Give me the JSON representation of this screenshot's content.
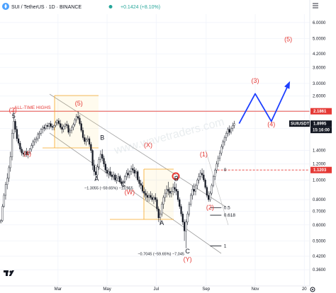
{
  "header": {
    "pair": "SUI / TetherUS · 1D · BINANCE",
    "change": "+0.1424 (+8.10%)",
    "status_color": "#26a69a"
  },
  "watermark": "www.wavetraders.com",
  "chart_data": {
    "type": "candlestick",
    "title": "SUI / TetherUS · 1D · BINANCE",
    "y_scale": "log",
    "ylim": [
      0.33,
      6.6
    ],
    "y_ticks": [
      "6.0000",
      "5.0000",
      "4.2000",
      "3.6000",
      "3.0000",
      "2.6000",
      "2.2000",
      "1.8000",
      "1.4000",
      "1.2000",
      "1.0000",
      "0.8000",
      "0.7000",
      "0.6000",
      "0.5000",
      "0.4200",
      "0.3600"
    ],
    "x_ticks": [
      "Mar",
      "May",
      "Jul",
      "Sep",
      "Nov",
      "20"
    ],
    "price_labels": [
      {
        "label": "2.1861",
        "value": 2.1861,
        "color": "#e53935"
      },
      {
        "label": "SUIUSDT",
        "value": 1.8995,
        "color": "#131722"
      },
      {
        "label": "1.8995",
        "value": 1.8995,
        "color": "#131722"
      },
      {
        "label": "15:16:00",
        "value": 1.74,
        "color": "#131722"
      },
      {
        "label": "1.1203",
        "value": 1.1203,
        "color": "#e53935"
      }
    ],
    "horizontal_lines": [
      {
        "label": "ALL-TIME HIGHS",
        "value": 2.1861,
        "color": "#e53935",
        "style": "solid"
      },
      {
        "label": "",
        "value": 1.1203,
        "color": "#e53935",
        "style": "dashed"
      }
    ],
    "fibonacci": [
      {
        "label": "0",
        "value": 1.1203
      },
      {
        "label": "0.5",
        "value": 0.73
      },
      {
        "label": "0.618",
        "value": 0.67
      },
      {
        "label": "1",
        "value": 0.472
      }
    ],
    "waves": [
      {
        "label": "(3)",
        "date": "2024-01-05",
        "value": 2.16,
        "color": "#e53935"
      },
      {
        "label": "5",
        "date": "2024-01-06",
        "value": 2.02,
        "color": "#131722"
      },
      {
        "label": "(4)",
        "date": "2024-01-23",
        "value": 1.32,
        "color": "#e53935"
      },
      {
        "label": "(5)",
        "date": "2024-03-27",
        "value": 2.34,
        "color": "#e53935"
      },
      {
        "label": "B",
        "date": "2024-04-25",
        "value": 1.58,
        "color": "#131722"
      },
      {
        "label": "A",
        "date": "2024-04-18",
        "value": 0.99,
        "color": "#131722"
      },
      {
        "label": "C",
        "date": "2024-05-21",
        "value": 0.93,
        "color": "#131722"
      },
      {
        "label": "(W)",
        "date": "2024-05-29",
        "value": 0.85,
        "color": "#e53935"
      },
      {
        "label": "(X)",
        "date": "2024-06-21",
        "value": 1.45,
        "color": "#e53935"
      },
      {
        "label": "A",
        "date": "2024-07-08",
        "value": 0.6,
        "color": "#131722"
      },
      {
        "label": "B",
        "date": "2024-07-26",
        "value": 0.99,
        "color": "#131722"
      },
      {
        "label": "(1)",
        "date": "2024-08-29",
        "value": 1.31,
        "color": "#e53935"
      },
      {
        "label": "C",
        "date": "2024-08-09",
        "value": 0.434,
        "color": "#131722"
      },
      {
        "label": "(Y)",
        "date": "2024-08-09",
        "value": 0.395,
        "color": "#e53935"
      },
      {
        "label": "(2)",
        "date": "2024-09-06",
        "value": 0.715,
        "color": "#e53935"
      },
      {
        "label": "(3)",
        "date": "2024-11-01",
        "value": 3.02,
        "color": "#e53935"
      },
      {
        "label": "(4)",
        "date": "2024-11-21",
        "value": 1.84,
        "color": "#e53935"
      },
      {
        "label": "(5)",
        "date": "2024-12-12",
        "value": 4.85,
        "color": "#e53935"
      }
    ],
    "annotations": [
      {
        "text": "−1.3055 (−59.65%) −13,055",
        "date": "2024-05-03",
        "value": 0.9
      },
      {
        "text": "−0.7045 (−59.65%) −7,045",
        "date": "2024-07-07",
        "value": 0.425
      }
    ],
    "projection": [
      {
        "date": "2024-10-12",
        "value": 1.9
      },
      {
        "date": "2024-11-01",
        "value": 2.67
      },
      {
        "date": "2024-11-21",
        "value": 1.95
      },
      {
        "date": "2024-12-12",
        "value": 2.95
      }
    ],
    "candles": [
      [
        "2023-12-21",
        0.62,
        0.64,
        0.61,
        0.63
      ],
      [
        "2023-12-23",
        0.63,
        0.76,
        0.62,
        0.74
      ],
      [
        "2023-12-25",
        0.74,
        0.86,
        0.73,
        0.84
      ],
      [
        "2023-12-27",
        0.84,
        0.98,
        0.8,
        0.95
      ],
      [
        "2023-12-29",
        0.95,
        1.08,
        0.9,
        1.02
      ],
      [
        "2023-12-31",
        1.02,
        1.18,
        0.98,
        1.15
      ],
      [
        "2024-01-02",
        1.15,
        1.38,
        1.1,
        1.3
      ],
      [
        "2024-01-04",
        1.3,
        1.78,
        1.25,
        1.7
      ],
      [
        "2024-01-06",
        1.7,
        2.18,
        1.6,
        1.95
      ],
      [
        "2024-01-08",
        1.95,
        2.0,
        1.72,
        1.78
      ],
      [
        "2024-01-10",
        1.78,
        1.85,
        1.55,
        1.6
      ],
      [
        "2024-01-12",
        1.6,
        1.68,
        1.48,
        1.52
      ],
      [
        "2024-01-14",
        1.52,
        1.56,
        1.38,
        1.42
      ],
      [
        "2024-01-16",
        1.42,
        1.46,
        1.32,
        1.36
      ],
      [
        "2024-01-18",
        1.36,
        1.4,
        1.3,
        1.34
      ],
      [
        "2024-01-20",
        1.34,
        1.4,
        1.3,
        1.38
      ],
      [
        "2024-01-22",
        1.38,
        1.44,
        1.3,
        1.33
      ],
      [
        "2024-01-24",
        1.33,
        1.4,
        1.28,
        1.37
      ],
      [
        "2024-01-26",
        1.37,
        1.44,
        1.34,
        1.42
      ],
      [
        "2024-01-28",
        1.42,
        1.52,
        1.38,
        1.48
      ],
      [
        "2024-01-30",
        1.48,
        1.58,
        1.44,
        1.54
      ],
      [
        "2024-02-01",
        1.54,
        1.62,
        1.48,
        1.58
      ],
      [
        "2024-02-03",
        1.58,
        1.64,
        1.52,
        1.6
      ],
      [
        "2024-02-05",
        1.6,
        1.72,
        1.55,
        1.68
      ],
      [
        "2024-02-07",
        1.68,
        1.75,
        1.6,
        1.7
      ],
      [
        "2024-02-09",
        1.7,
        1.8,
        1.65,
        1.78
      ],
      [
        "2024-02-11",
        1.78,
        1.86,
        1.7,
        1.82
      ],
      [
        "2024-02-13",
        1.82,
        1.88,
        1.74,
        1.8
      ],
      [
        "2024-02-15",
        1.8,
        1.9,
        1.76,
        1.86
      ],
      [
        "2024-02-17",
        1.86,
        1.92,
        1.78,
        1.84
      ],
      [
        "2024-02-19",
        1.84,
        1.92,
        1.78,
        1.9
      ],
      [
        "2024-02-21",
        1.9,
        1.96,
        1.8,
        1.84
      ],
      [
        "2024-02-23",
        1.84,
        1.9,
        1.76,
        1.82
      ],
      [
        "2024-02-25",
        1.82,
        1.88,
        1.76,
        1.86
      ],
      [
        "2024-02-27",
        1.86,
        1.96,
        1.82,
        1.92
      ],
      [
        "2024-02-29",
        1.92,
        2.0,
        1.86,
        1.96
      ],
      [
        "2024-03-02",
        1.96,
        2.02,
        1.86,
        1.9
      ],
      [
        "2024-03-04",
        1.9,
        1.98,
        1.78,
        1.82
      ],
      [
        "2024-03-06",
        1.82,
        1.9,
        1.7,
        1.78
      ],
      [
        "2024-03-08",
        1.78,
        1.88,
        1.72,
        1.84
      ],
      [
        "2024-03-10",
        1.84,
        1.92,
        1.78,
        1.88
      ],
      [
        "2024-03-12",
        1.88,
        1.96,
        1.8,
        1.86
      ],
      [
        "2024-03-14",
        1.86,
        1.9,
        1.68,
        1.72
      ],
      [
        "2024-03-16",
        1.72,
        1.8,
        1.64,
        1.76
      ],
      [
        "2024-03-18",
        1.76,
        1.86,
        1.7,
        1.82
      ],
      [
        "2024-03-20",
        1.82,
        1.92,
        1.76,
        1.88
      ],
      [
        "2024-03-22",
        1.88,
        2.02,
        1.84,
        1.98
      ],
      [
        "2024-03-24",
        1.98,
        2.12,
        1.92,
        2.06
      ],
      [
        "2024-03-26",
        2.06,
        2.18,
        1.98,
        2.02
      ],
      [
        "2024-03-28",
        2.02,
        2.1,
        1.86,
        1.9
      ],
      [
        "2024-03-30",
        1.9,
        1.96,
        1.72,
        1.76
      ],
      [
        "2024-04-01",
        1.76,
        1.82,
        1.58,
        1.62
      ],
      [
        "2024-04-03",
        1.62,
        1.68,
        1.5,
        1.55
      ],
      [
        "2024-04-05",
        1.55,
        1.62,
        1.48,
        1.58
      ],
      [
        "2024-04-07",
        1.58,
        1.66,
        1.54,
        1.6
      ],
      [
        "2024-04-09",
        1.6,
        1.64,
        1.46,
        1.5
      ],
      [
        "2024-04-11",
        1.5,
        1.54,
        1.36,
        1.4
      ],
      [
        "2024-04-13",
        1.4,
        1.42,
        1.12,
        1.18
      ],
      [
        "2024-04-15",
        1.18,
        1.26,
        1.05,
        1.1
      ],
      [
        "2024-04-17",
        1.1,
        1.16,
        0.99,
        1.06
      ],
      [
        "2024-04-19",
        1.06,
        1.2,
        1.02,
        1.16
      ],
      [
        "2024-04-21",
        1.16,
        1.3,
        1.12,
        1.26
      ],
      [
        "2024-04-23",
        1.26,
        1.4,
        1.22,
        1.34
      ],
      [
        "2024-04-25",
        1.34,
        1.42,
        1.24,
        1.28
      ],
      [
        "2024-04-27",
        1.28,
        1.32,
        1.16,
        1.2
      ],
      [
        "2024-04-29",
        1.2,
        1.24,
        1.08,
        1.12
      ],
      [
        "2024-05-01",
        1.12,
        1.16,
        1.04,
        1.08
      ],
      [
        "2024-05-03",
        1.08,
        1.14,
        1.02,
        1.1
      ],
      [
        "2024-05-05",
        1.1,
        1.16,
        1.04,
        1.06
      ],
      [
        "2024-05-07",
        1.06,
        1.1,
        1.0,
        1.04
      ],
      [
        "2024-05-09",
        1.04,
        1.1,
        1.0,
        1.06
      ],
      [
        "2024-05-11",
        1.06,
        1.08,
        0.98,
        1.0
      ],
      [
        "2024-05-13",
        1.0,
        1.06,
        0.96,
        1.02
      ],
      [
        "2024-05-15",
        1.02,
        1.08,
        0.98,
        1.04
      ],
      [
        "2024-05-17",
        1.04,
        1.06,
        0.96,
        0.98
      ],
      [
        "2024-05-19",
        0.98,
        1.02,
        0.94,
        0.96
      ],
      [
        "2024-05-21",
        0.96,
        1.0,
        0.92,
        0.98
      ],
      [
        "2024-05-23",
        0.98,
        1.06,
        0.96,
        1.04
      ],
      [
        "2024-05-25",
        1.04,
        1.12,
        1.0,
        1.08
      ],
      [
        "2024-05-27",
        1.08,
        1.14,
        1.02,
        1.06
      ],
      [
        "2024-05-29",
        1.06,
        1.12,
        1.02,
        1.1
      ],
      [
        "2024-05-31",
        1.1,
        1.18,
        1.06,
        1.14
      ],
      [
        "2024-06-02",
        1.14,
        1.2,
        1.08,
        1.12
      ],
      [
        "2024-06-04",
        1.12,
        1.16,
        1.04,
        1.08
      ],
      [
        "2024-06-06",
        1.08,
        1.14,
        1.02,
        1.1
      ],
      [
        "2024-06-08",
        1.1,
        1.12,
        0.98,
        1.0
      ],
      [
        "2024-06-10",
        1.0,
        1.04,
        0.92,
        0.96
      ],
      [
        "2024-06-12",
        0.96,
        1.0,
        0.9,
        0.94
      ],
      [
        "2024-06-14",
        0.94,
        0.98,
        0.86,
        0.88
      ],
      [
        "2024-06-16",
        0.88,
        0.92,
        0.82,
        0.86
      ],
      [
        "2024-06-18",
        0.86,
        0.9,
        0.8,
        0.84
      ],
      [
        "2024-06-20",
        0.84,
        0.88,
        0.78,
        0.82
      ],
      [
        "2024-06-22",
        0.82,
        0.86,
        0.78,
        0.84
      ],
      [
        "2024-06-24",
        0.84,
        0.88,
        0.8,
        0.82
      ],
      [
        "2024-06-26",
        0.82,
        0.86,
        0.78,
        0.8
      ],
      [
        "2024-06-28",
        0.8,
        0.84,
        0.76,
        0.82
      ],
      [
        "2024-06-30",
        0.82,
        0.86,
        0.78,
        0.8
      ],
      [
        "2024-07-02",
        0.8,
        0.82,
        0.7,
        0.72
      ],
      [
        "2024-07-04",
        0.72,
        0.74,
        0.62,
        0.65
      ],
      [
        "2024-07-06",
        0.65,
        0.7,
        0.6,
        0.68
      ],
      [
        "2024-07-08",
        0.68,
        0.78,
        0.66,
        0.76
      ],
      [
        "2024-07-10",
        0.76,
        0.84,
        0.72,
        0.82
      ],
      [
        "2024-07-12",
        0.82,
        0.9,
        0.78,
        0.86
      ],
      [
        "2024-07-14",
        0.86,
        0.94,
        0.82,
        0.9
      ],
      [
        "2024-07-16",
        0.9,
        0.98,
        0.84,
        0.88
      ],
      [
        "2024-07-18",
        0.88,
        0.92,
        0.82,
        0.86
      ],
      [
        "2024-07-20",
        0.86,
        0.92,
        0.82,
        0.88
      ],
      [
        "2024-07-22",
        0.88,
        0.96,
        0.84,
        0.92
      ],
      [
        "2024-07-24",
        0.92,
        0.98,
        0.86,
        0.9
      ],
      [
        "2024-07-26",
        0.9,
        0.96,
        0.84,
        0.88
      ],
      [
        "2024-07-28",
        0.88,
        0.9,
        0.78,
        0.8
      ],
      [
        "2024-07-30",
        0.8,
        0.82,
        0.72,
        0.74
      ],
      [
        "2024-08-01",
        0.74,
        0.76,
        0.66,
        0.68
      ],
      [
        "2024-08-03",
        0.68,
        0.7,
        0.6,
        0.62
      ],
      [
        "2024-08-05",
        0.62,
        0.64,
        0.5,
        0.56
      ],
      [
        "2024-08-07",
        0.56,
        0.64,
        0.46,
        0.62
      ],
      [
        "2024-08-09",
        0.62,
        0.7,
        0.6,
        0.68
      ],
      [
        "2024-08-11",
        0.68,
        0.78,
        0.66,
        0.76
      ],
      [
        "2024-08-13",
        0.76,
        0.86,
        0.74,
        0.84
      ],
      [
        "2024-08-15",
        0.84,
        0.94,
        0.8,
        0.9
      ],
      [
        "2024-08-17",
        0.9,
        0.96,
        0.84,
        0.88
      ],
      [
        "2024-08-19",
        0.88,
        0.96,
        0.84,
        0.94
      ],
      [
        "2024-08-21",
        0.94,
        1.02,
        0.9,
        1.0
      ],
      [
        "2024-08-23",
        1.0,
        1.08,
        0.96,
        1.04
      ],
      [
        "2024-08-25",
        1.04,
        1.12,
        1.0,
        1.08
      ],
      [
        "2024-08-27",
        1.08,
        1.14,
        1.02,
        1.06
      ],
      [
        "2024-08-29",
        1.06,
        1.12,
        0.98,
        1.0
      ],
      [
        "2024-08-31",
        1.0,
        1.02,
        0.9,
        0.92
      ],
      [
        "2024-09-02",
        0.92,
        0.94,
        0.82,
        0.84
      ],
      [
        "2024-09-04",
        0.84,
        0.88,
        0.78,
        0.8
      ],
      [
        "2024-09-06",
        0.8,
        0.88,
        0.78,
        0.86
      ],
      [
        "2024-09-08",
        0.86,
        0.96,
        0.84,
        0.94
      ],
      [
        "2024-09-10",
        0.94,
        1.06,
        0.92,
        1.04
      ],
      [
        "2024-09-12",
        1.04,
        1.14,
        1.0,
        1.12
      ],
      [
        "2024-09-14",
        1.12,
        1.24,
        1.08,
        1.2
      ],
      [
        "2024-09-16",
        1.2,
        1.32,
        1.16,
        1.28
      ],
      [
        "2024-09-18",
        1.28,
        1.4,
        1.24,
        1.36
      ],
      [
        "2024-09-20",
        1.36,
        1.5,
        1.32,
        1.46
      ],
      [
        "2024-09-22",
        1.46,
        1.58,
        1.42,
        1.54
      ],
      [
        "2024-09-24",
        1.54,
        1.66,
        1.48,
        1.62
      ],
      [
        "2024-09-26",
        1.62,
        1.74,
        1.56,
        1.7
      ],
      [
        "2024-09-28",
        1.7,
        1.82,
        1.64,
        1.78
      ],
      [
        "2024-09-30",
        1.78,
        1.86,
        1.66,
        1.72
      ],
      [
        "2024-10-02",
        1.72,
        1.84,
        1.68,
        1.8
      ],
      [
        "2024-10-04",
        1.8,
        1.92,
        1.74,
        1.86
      ],
      [
        "2024-10-06",
        1.86,
        1.96,
        1.8,
        1.9
      ]
    ]
  }
}
